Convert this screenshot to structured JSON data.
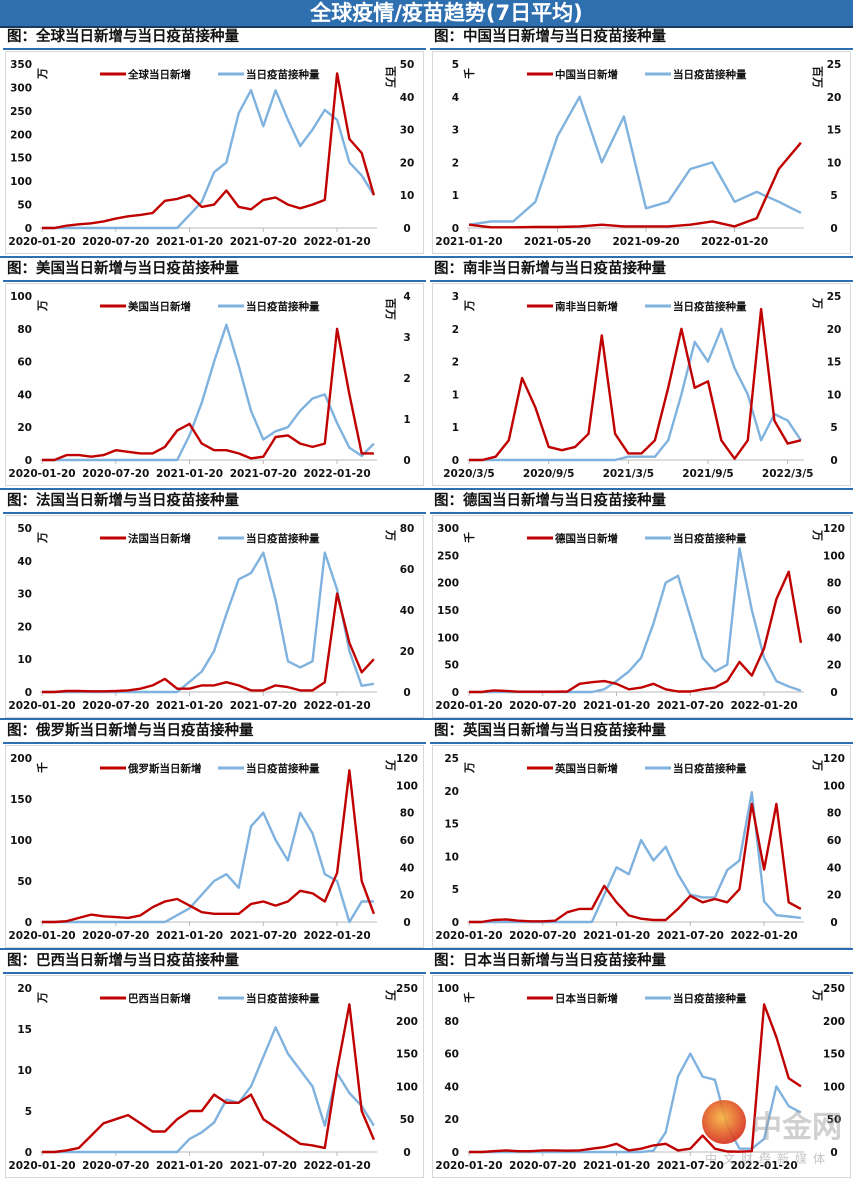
{
  "header": {
    "title": "全球疫情/疫苗趋势(7日平均)"
  },
  "colors": {
    "cases": "#c00000",
    "vaccine": "#7fb2de",
    "accent": "#2e6fb0"
  },
  "watermark": {
    "brand": "中金网",
    "tagline": "中文财经新媒体"
  },
  "chart_data": [
    {
      "type": "line",
      "title": "图：全球当日新增与当日疫苗接种量",
      "left_unit": "万",
      "right_unit": "百万",
      "legend": [
        "全球当日新增",
        "当日疫苗接种量"
      ],
      "x_ticks": [
        "2020-01-20",
        "2020-07-20",
        "2021-01-20",
        "2021-07-20",
        "2022-01-20"
      ],
      "x_tick_month": [
        0,
        6,
        12,
        18,
        24
      ],
      "x_months": 27,
      "left_ylim": [
        0,
        350
      ],
      "left_ticks": [
        "0",
        "50",
        "100",
        "150",
        "200",
        "250",
        "300",
        "350"
      ],
      "right_ylim": [
        0,
        50
      ],
      "right_ticks": [
        "0",
        "10",
        "20",
        "30",
        "40",
        "50"
      ],
      "cases": [
        0,
        0,
        5,
        8,
        10,
        14,
        20,
        25,
        28,
        32,
        58,
        62,
        70,
        45,
        50,
        80,
        45,
        40,
        60,
        65,
        50,
        42,
        50,
        60,
        330,
        190,
        160,
        70
      ],
      "vaccine": [
        0,
        0,
        0,
        0,
        0,
        0,
        0,
        0,
        0,
        0,
        0,
        0,
        4,
        8,
        17,
        20,
        35,
        42,
        31,
        42,
        33,
        25,
        30,
        36,
        33,
        20,
        16,
        10
      ]
    },
    {
      "type": "line",
      "title": "图：中国当日新增与当日疫苗接种量",
      "left_unit": "千",
      "right_unit": "百万",
      "legend": [
        "中国当日新增",
        "当日疫苗接种量"
      ],
      "x_ticks": [
        "2021-01-20",
        "2021-05-20",
        "2021-09-20",
        "2022-01-20"
      ],
      "x_tick_month": [
        0,
        4,
        8,
        12
      ],
      "x_months": 15,
      "left_ylim": [
        0,
        5
      ],
      "left_ticks": [
        "0",
        "1",
        "2",
        "3",
        "4",
        "5"
      ],
      "right_ylim": [
        0,
        25
      ],
      "right_ticks": [
        "0",
        "5",
        "10",
        "15",
        "20",
        "25"
      ],
      "cases": [
        0.1,
        0.02,
        0.02,
        0.03,
        0.03,
        0.05,
        0.1,
        0.05,
        0.05,
        0.05,
        0.1,
        0.2,
        0.05,
        0.3,
        1.8,
        2.6
      ],
      "vaccine": [
        0.5,
        1,
        1,
        4,
        14,
        20,
        10,
        17,
        3,
        4,
        9,
        10,
        4,
        5.5,
        4,
        2.3
      ]
    },
    {
      "type": "line",
      "title": "图：美国当日新增与当日疫苗接种量",
      "left_unit": "万",
      "right_unit": "百万",
      "legend": [
        "美国当日新增",
        "当日疫苗接种量"
      ],
      "x_ticks": [
        "2020-01-20",
        "2020-07-20",
        "2021-01-20",
        "2021-07-20",
        "2022-01-20"
      ],
      "x_tick_month": [
        0,
        6,
        12,
        18,
        24
      ],
      "x_months": 27,
      "left_ylim": [
        0,
        100
      ],
      "left_ticks": [
        "0",
        "20",
        "40",
        "60",
        "80",
        "100"
      ],
      "right_ylim": [
        0,
        4
      ],
      "right_ticks": [
        "0",
        "1",
        "2",
        "3",
        "4"
      ],
      "cases": [
        0,
        0,
        3,
        3,
        2,
        3,
        6,
        5,
        4,
        4,
        8,
        18,
        22,
        10,
        6,
        6,
        4,
        1,
        2,
        14,
        15,
        10,
        8,
        10,
        80,
        40,
        4,
        4
      ],
      "vaccine": [
        0,
        0,
        0,
        0,
        0,
        0,
        0,
        0,
        0,
        0,
        0,
        0,
        0.6,
        1.4,
        2.4,
        3.3,
        2.3,
        1.2,
        0.5,
        0.7,
        0.8,
        1.2,
        1.5,
        1.6,
        0.9,
        0.3,
        0.1,
        0.4
      ]
    },
    {
      "type": "line",
      "title": "图：南非当日新增与当日疫苗接种量",
      "left_unit": "万",
      "right_unit": "万",
      "legend": [
        "南非当日新增",
        "当日疫苗接种量"
      ],
      "x_ticks": [
        "2020/3/5",
        "2020/9/5",
        "2021/3/5",
        "2021/9/5",
        "2022/3/5"
      ],
      "x_tick_month": [
        0,
        6,
        12,
        18,
        24
      ],
      "x_months": 25,
      "left_ylim": [
        0,
        2.5
      ],
      "left_ticks": [
        "0",
        "1",
        "1",
        "2",
        "2",
        "3"
      ],
      "right_ylim": [
        0,
        25
      ],
      "right_ticks": [
        "0",
        "5",
        "10",
        "15",
        "20",
        "25"
      ],
      "cases": [
        0,
        0,
        0.05,
        0.3,
        1.25,
        0.8,
        0.2,
        0.15,
        0.2,
        0.4,
        1.9,
        0.4,
        0.1,
        0.1,
        0.3,
        1.1,
        2.0,
        1.1,
        1.2,
        0.3,
        0.02,
        0.3,
        2.3,
        0.6,
        0.25,
        0.3
      ],
      "vaccine": [
        0,
        0,
        0,
        0,
        0,
        0,
        0,
        0,
        0,
        0,
        0,
        0,
        0.5,
        0.5,
        0.5,
        3,
        10,
        18,
        15,
        20,
        14,
        10,
        3,
        7,
        6,
        3
      ]
    },
    {
      "type": "line",
      "title": "图：法国当日新增与当日疫苗接种量",
      "left_unit": "万",
      "right_unit": "万",
      "legend": [
        "法国当日新增",
        "当日疫苗接种量"
      ],
      "x_ticks": [
        "2020-01-20",
        "2020-07-20",
        "2021-01-20",
        "2021-07-20",
        "2022-01-20"
      ],
      "x_tick_month": [
        0,
        6,
        12,
        18,
        24
      ],
      "x_months": 27,
      "left_ylim": [
        0,
        50
      ],
      "left_ticks": [
        "0",
        "10",
        "20",
        "30",
        "40",
        "50"
      ],
      "right_ylim": [
        0,
        80
      ],
      "right_ticks": [
        "0",
        "20",
        "40",
        "60",
        "80"
      ],
      "cases": [
        0,
        0,
        0.3,
        0.3,
        0.2,
        0.2,
        0.3,
        0.5,
        1,
        2,
        4,
        1,
        1,
        2,
        2,
        3,
        2,
        0.5,
        0.5,
        2,
        1.5,
        0.5,
        0.5,
        3,
        30,
        15,
        6,
        10
      ],
      "vaccine": [
        0,
        0,
        0,
        0,
        0,
        0,
        0,
        0,
        0,
        0,
        0,
        0,
        5,
        10,
        20,
        38,
        55,
        58,
        68,
        45,
        15,
        12,
        15,
        68,
        50,
        20,
        3,
        4
      ]
    },
    {
      "type": "line",
      "title": "图：德国当日新增与当日疫苗接种量",
      "left_unit": "千",
      "right_unit": "万",
      "legend": [
        "德国当日新增",
        "当日疫苗接种量"
      ],
      "x_ticks": [
        "2020-01-20",
        "2020-07-20",
        "2021-01-20",
        "2021-07-20",
        "2022-01-20"
      ],
      "x_tick_month": [
        0,
        6,
        12,
        18,
        24
      ],
      "x_months": 27,
      "left_ylim": [
        0,
        300
      ],
      "left_ticks": [
        "0",
        "50",
        "100",
        "150",
        "200",
        "250",
        "300"
      ],
      "right_ylim": [
        0,
        120
      ],
      "right_ticks": [
        "0",
        "20",
        "40",
        "60",
        "80",
        "100",
        "120"
      ],
      "cases": [
        0,
        0,
        3,
        2,
        0.5,
        0.5,
        0.5,
        0.5,
        1,
        15,
        18,
        20,
        15,
        5,
        8,
        15,
        5,
        1,
        1,
        5,
        8,
        20,
        55,
        30,
        80,
        170,
        220,
        90
      ],
      "vaccine": [
        0,
        0,
        0,
        0,
        0,
        0,
        0,
        0,
        0,
        0,
        0,
        2,
        8,
        15,
        25,
        50,
        80,
        85,
        55,
        25,
        15,
        20,
        105,
        60,
        25,
        8,
        4,
        1
      ]
    },
    {
      "type": "line",
      "title": "图：俄罗斯当日新增与当日疫苗接种量",
      "left_unit": "千",
      "right_unit": "万",
      "legend": [
        "俄罗斯当日新增",
        "当日疫苗接种量"
      ],
      "x_ticks": [
        "2020-01-20",
        "2020-07-20",
        "2021-01-20",
        "2021-07-20",
        "2022-01-20"
      ],
      "x_tick_month": [
        0,
        6,
        12,
        18,
        24
      ],
      "x_months": 27,
      "left_ylim": [
        0,
        200
      ],
      "left_ticks": [
        "0",
        "50",
        "100",
        "150",
        "200"
      ],
      "right_ylim": [
        0,
        120
      ],
      "right_ticks": [
        "0",
        "20",
        "40",
        "60",
        "80",
        "100",
        "120"
      ],
      "cases": [
        0,
        0,
        1,
        5,
        9,
        7,
        6,
        5,
        8,
        18,
        25,
        28,
        20,
        12,
        10,
        10,
        10,
        22,
        25,
        20,
        25,
        38,
        35,
        25,
        60,
        185,
        50,
        10
      ],
      "vaccine": [
        0,
        0,
        0,
        0,
        0,
        0,
        0,
        0,
        0,
        0,
        0,
        5,
        10,
        20,
        30,
        35,
        25,
        70,
        80,
        60,
        45,
        80,
        65,
        35,
        30,
        0,
        15,
        15
      ]
    },
    {
      "type": "line",
      "title": "图：英国当日新增与当日疫苗接种量",
      "left_unit": "万",
      "right_unit": "万",
      "legend": [
        "英国当日新增",
        "当日疫苗接种量"
      ],
      "x_ticks": [
        "2020-01-20",
        "2020-07-20",
        "2021-01-20",
        "2021-07-20",
        "2022-01-20"
      ],
      "x_tick_month": [
        0,
        6,
        12,
        18,
        24
      ],
      "x_months": 27,
      "left_ylim": [
        0,
        25
      ],
      "left_ticks": [
        "0",
        "5",
        "10",
        "15",
        "20",
        "25"
      ],
      "right_ylim": [
        0,
        120
      ],
      "right_ticks": [
        "0",
        "20",
        "40",
        "60",
        "80",
        "100",
        "120"
      ],
      "cases": [
        0,
        0,
        0.3,
        0.4,
        0.2,
        0.1,
        0.1,
        0.2,
        1.5,
        2,
        2,
        5.5,
        3,
        1,
        0.5,
        0.3,
        0.3,
        2,
        4,
        3,
        3.5,
        3,
        5,
        18,
        8,
        18,
        3,
        2
      ],
      "vaccine": [
        0,
        0,
        0,
        0,
        0,
        0,
        0,
        0,
        0,
        0,
        0,
        20,
        40,
        35,
        60,
        45,
        55,
        35,
        20,
        18,
        18,
        38,
        45,
        95,
        15,
        5,
        4,
        3
      ]
    },
    {
      "type": "line",
      "title": "图：巴西当日新增与当日疫苗接种量",
      "left_unit": "万",
      "right_unit": "万",
      "legend": [
        "巴西当日新增",
        "当日疫苗接种量"
      ],
      "x_ticks": [
        "2020-01-20",
        "2020-07-20",
        "2021-01-20",
        "2021-07-20",
        "2022-01-20"
      ],
      "x_tick_month": [
        0,
        6,
        12,
        18,
        24
      ],
      "x_months": 27,
      "left_ylim": [
        0,
        20
      ],
      "left_ticks": [
        "0",
        "5",
        "10",
        "15",
        "20"
      ],
      "right_ylim": [
        0,
        250
      ],
      "right_ticks": [
        "0",
        "50",
        "100",
        "150",
        "200",
        "250"
      ],
      "cases": [
        0,
        0,
        0.2,
        0.5,
        2,
        3.5,
        4,
        4.5,
        3.5,
        2.5,
        2.5,
        4,
        5,
        5,
        7,
        6,
        6,
        7,
        4,
        3,
        2,
        1,
        0.8,
        0.5,
        10,
        18,
        5,
        1.5
      ],
      "vaccine": [
        0,
        0,
        0,
        0,
        0,
        0,
        0,
        0,
        0,
        0,
        0,
        0,
        20,
        30,
        45,
        80,
        75,
        100,
        145,
        190,
        150,
        125,
        100,
        40,
        120,
        90,
        70,
        40
      ]
    },
    {
      "type": "line",
      "title": "图：日本当日新增与当日疫苗接种量",
      "left_unit": "千",
      "right_unit": "万",
      "legend": [
        "日本当日新增",
        "当日疫苗接种量"
      ],
      "x_ticks": [
        "2020-01-20",
        "2020-07-20",
        "2021-01-20",
        "2021-07-20",
        "2022-01-20"
      ],
      "x_tick_month": [
        0,
        6,
        12,
        18,
        24
      ],
      "x_months": 27,
      "left_ylim": [
        0,
        100
      ],
      "left_ticks": [
        "0",
        "20",
        "40",
        "60",
        "80",
        "100"
      ],
      "right_ylim": [
        0,
        250
      ],
      "right_ticks": [
        "0",
        "50",
        "100",
        "150",
        "200",
        "250"
      ],
      "cases": [
        0,
        0,
        0.5,
        1,
        0.5,
        0.5,
        1,
        1,
        0.8,
        1,
        2,
        3,
        5,
        1,
        2,
        4,
        5,
        1,
        2,
        10,
        2,
        0.3,
        0.2,
        0.5,
        90,
        70,
        45,
        40
      ],
      "vaccine": [
        0,
        0,
        0,
        0,
        0,
        0,
        0,
        0,
        0,
        0,
        0,
        0,
        0,
        0,
        0,
        2,
        30,
        115,
        150,
        115,
        110,
        40,
        5,
        5,
        20,
        100,
        70,
        60
      ]
    }
  ]
}
